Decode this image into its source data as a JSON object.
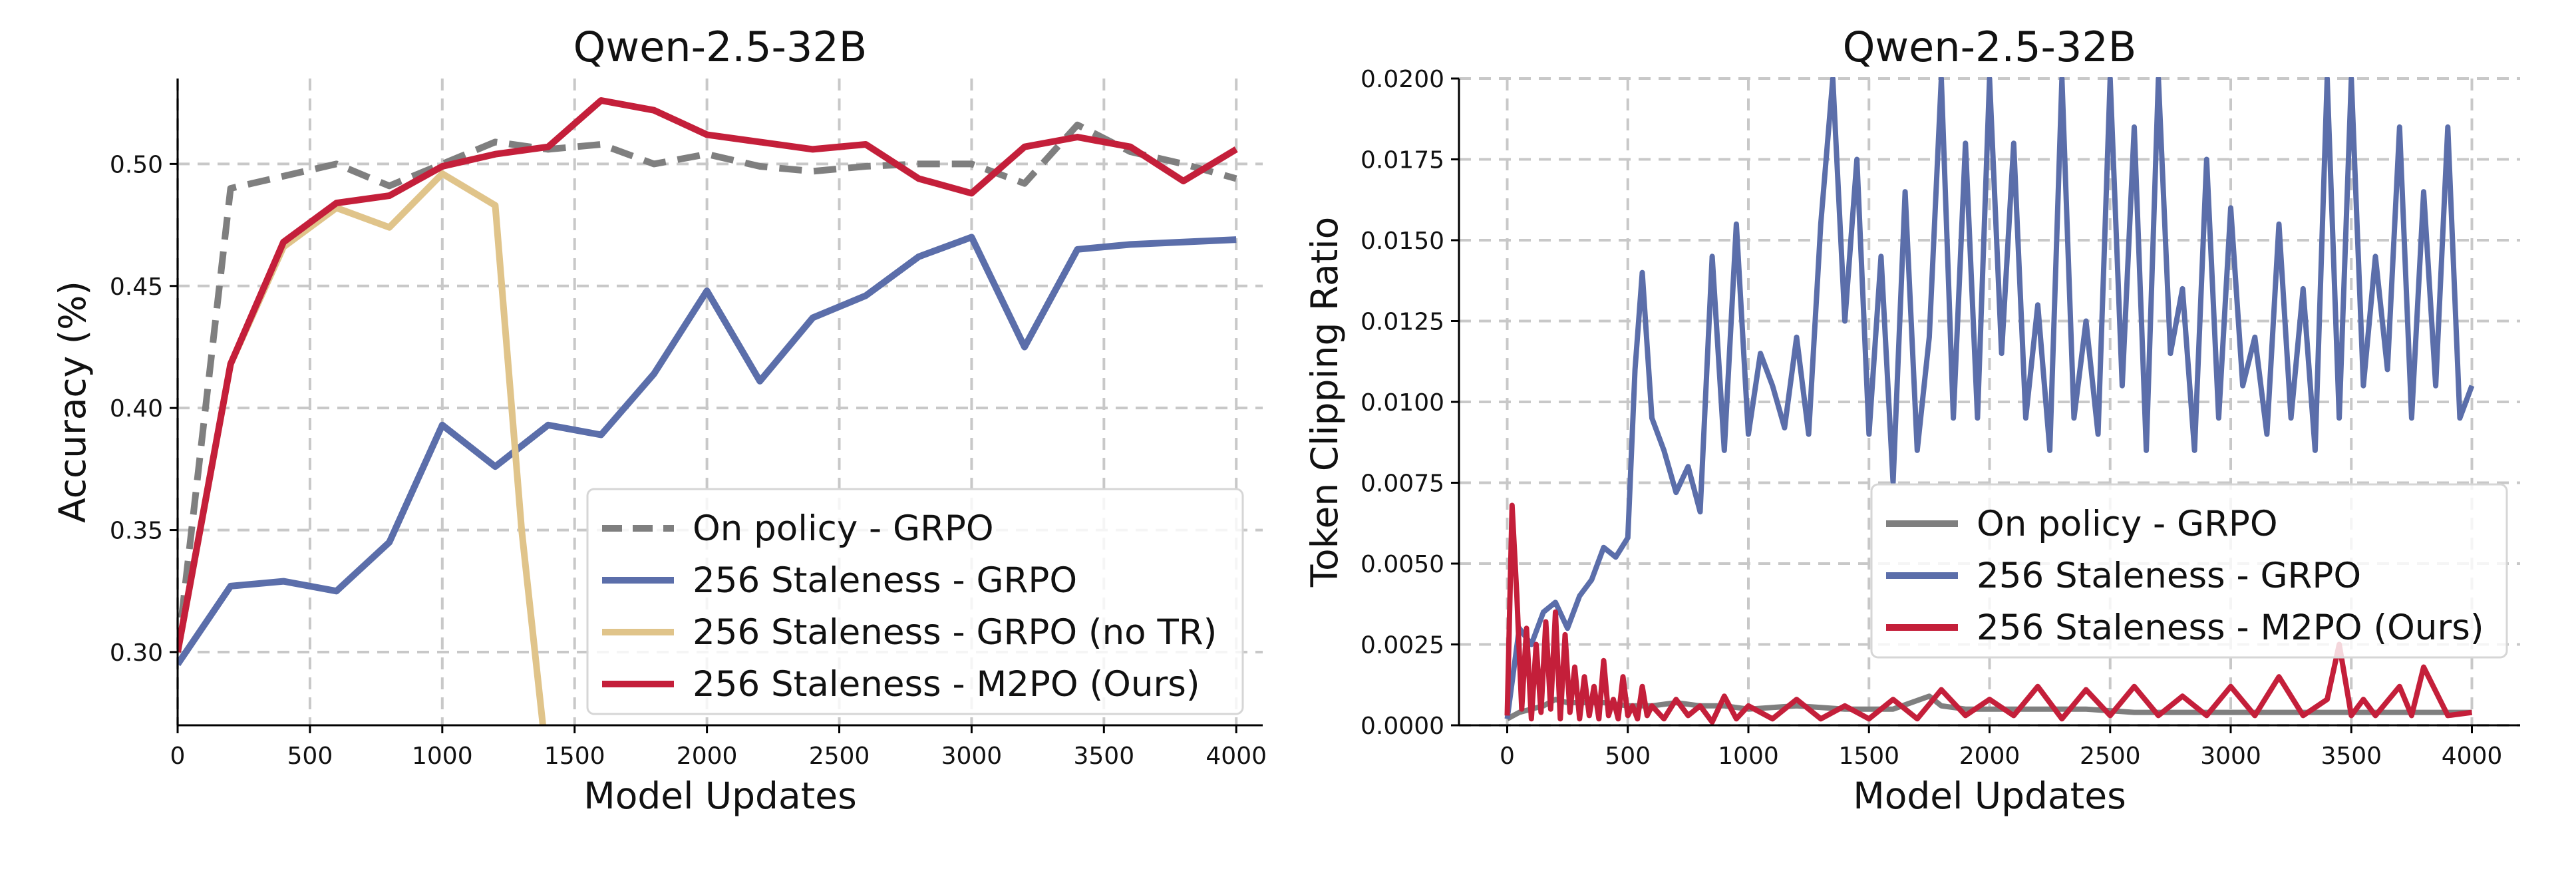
{
  "chart_data": [
    {
      "type": "line",
      "title": "Qwen-2.5-32B",
      "xlabel": "Model Updates",
      "ylabel": "Accuracy (%)",
      "xlim": [
        0,
        4100
      ],
      "ylim": [
        0.27,
        0.535
      ],
      "xticks": [
        0,
        500,
        1000,
        1500,
        2000,
        2500,
        3000,
        3500,
        4000
      ],
      "xtick_labels": [
        "0",
        "500",
        "1000",
        "1500",
        "2000",
        "2500",
        "3000",
        "3500",
        "4000"
      ],
      "yticks": [
        0.3,
        0.35,
        0.4,
        0.45,
        0.5
      ],
      "ytick_labels": [
        "0.30",
        "0.35",
        "0.40",
        "0.45",
        "0.50"
      ],
      "grid": true,
      "legend_position": "bottom-right",
      "series": [
        {
          "name": "On policy - GRPO",
          "color": "#7f7f7f",
          "dash": true,
          "x": [
            0,
            200,
            400,
            600,
            800,
            1000,
            1200,
            1400,
            1600,
            1800,
            2000,
            2200,
            2400,
            2600,
            2800,
            3000,
            3200,
            3400,
            3600,
            3800,
            4000
          ],
          "y": [
            0.3,
            0.49,
            0.495,
            0.5,
            0.491,
            0.5,
            0.509,
            0.506,
            0.508,
            0.5,
            0.504,
            0.499,
            0.497,
            0.499,
            0.5,
            0.5,
            0.492,
            0.516,
            0.505,
            0.5,
            0.494
          ]
        },
        {
          "name": "256 Staleness - GRPO",
          "color": "#5b6eaa",
          "dash": false,
          "x": [
            0,
            200,
            400,
            600,
            800,
            1000,
            1200,
            1400,
            1600,
            1800,
            2000,
            2200,
            2400,
            2600,
            2800,
            3000,
            3200,
            3400,
            3600,
            3800,
            4000
          ],
          "y": [
            0.295,
            0.327,
            0.329,
            0.325,
            0.345,
            0.393,
            0.376,
            0.393,
            0.389,
            0.414,
            0.448,
            0.411,
            0.437,
            0.446,
            0.462,
            0.47,
            0.425,
            0.465,
            0.467,
            0.468,
            0.469
          ]
        },
        {
          "name": "256 Staleness - GRPO (no TR)",
          "color": "#e0c48a",
          "dash": false,
          "x": [
            0,
            200,
            400,
            600,
            800,
            1000,
            1200,
            1300,
            1380
          ],
          "y": [
            0.3,
            0.418,
            0.466,
            0.482,
            0.474,
            0.496,
            0.483,
            0.35,
            0.27
          ]
        },
        {
          "name": "256 Staleness - M2PO (Ours)",
          "color": "#c41f3a",
          "dash": false,
          "x": [
            0,
            200,
            400,
            600,
            800,
            1000,
            1200,
            1400,
            1600,
            1800,
            2000,
            2200,
            2400,
            2600,
            2800,
            3000,
            3200,
            3400,
            3600,
            3800,
            4000
          ],
          "y": [
            0.3,
            0.418,
            0.468,
            0.484,
            0.487,
            0.499,
            0.504,
            0.507,
            0.526,
            0.522,
            0.512,
            0.509,
            0.506,
            0.508,
            0.494,
            0.488,
            0.507,
            0.511,
            0.507,
            0.493,
            0.506
          ]
        }
      ]
    },
    {
      "type": "line",
      "title": "Qwen-2.5-32B",
      "xlabel": "Model Updates",
      "ylabel": "Token Clipping Ratio",
      "xlim": [
        -200,
        4200
      ],
      "ylim": [
        0,
        0.02
      ],
      "xticks": [
        0,
        500,
        1000,
        1500,
        2000,
        2500,
        3000,
        3500,
        4000
      ],
      "xtick_labels": [
        "0",
        "500",
        "1000",
        "1500",
        "2000",
        "2500",
        "3000",
        "3500",
        "4000"
      ],
      "yticks": [
        0,
        0.0025,
        0.005,
        0.0075,
        0.01,
        0.0125,
        0.015,
        0.0175,
        0.02
      ],
      "ytick_labels": [
        "0.0000",
        "0.0025",
        "0.0050",
        "0.0075",
        "0.0100",
        "0.0125",
        "0.0150",
        "0.0175",
        "0.0200"
      ],
      "grid": true,
      "legend_position": "lower-right",
      "series": [
        {
          "name": "On policy - GRPO",
          "color": "#7f7f7f",
          "dash": false,
          "x": [
            0,
            50,
            100,
            150,
            200,
            250,
            300,
            400,
            500,
            600,
            700,
            800,
            900,
            1000,
            1200,
            1400,
            1600,
            1750,
            1800,
            1900,
            2000,
            2200,
            2400,
            2600,
            2800,
            3000,
            3200,
            3400,
            3600,
            3800,
            4000
          ],
          "y": [
            0.0002,
            0.0004,
            0.0005,
            0.0006,
            0.0008,
            0.0007,
            0.0007,
            0.0007,
            0.0006,
            0.0006,
            0.0007,
            0.0006,
            0.0006,
            0.0005,
            0.0006,
            0.0005,
            0.0005,
            0.0009,
            0.0006,
            0.0005,
            0.0005,
            0.0005,
            0.0005,
            0.0004,
            0.0004,
            0.0004,
            0.0004,
            0.0004,
            0.0004,
            0.0004,
            0.0004
          ]
        },
        {
          "name": "256 Staleness - GRPO",
          "color": "#5b6eaa",
          "dash": false,
          "x": [
            0,
            50,
            100,
            150,
            200,
            250,
            300,
            350,
            400,
            450,
            500,
            530,
            560,
            600,
            650,
            700,
            750,
            800,
            850,
            900,
            950,
            1000,
            1050,
            1100,
            1150,
            1200,
            1250,
            1300,
            1350,
            1400,
            1450,
            1500,
            1550,
            1600,
            1650,
            1700,
            1750,
            1800,
            1850,
            1900,
            1950,
            2000,
            2050,
            2100,
            2150,
            2200,
            2250,
            2300,
            2350,
            2400,
            2450,
            2500,
            2550,
            2600,
            2650,
            2700,
            2750,
            2800,
            2850,
            2900,
            2950,
            3000,
            3050,
            3100,
            3150,
            3200,
            3250,
            3300,
            3350,
            3400,
            3450,
            3500,
            3550,
            3600,
            3650,
            3700,
            3750,
            3800,
            3850,
            3900,
            3950,
            4000
          ],
          "y": [
            0.0002,
            0.003,
            0.0025,
            0.0035,
            0.0038,
            0.003,
            0.004,
            0.0045,
            0.0055,
            0.0052,
            0.0058,
            0.011,
            0.014,
            0.0095,
            0.0085,
            0.0072,
            0.008,
            0.0066,
            0.0145,
            0.0085,
            0.0155,
            0.009,
            0.0115,
            0.0105,
            0.0092,
            0.012,
            0.009,
            0.0155,
            0.02,
            0.0125,
            0.0175,
            0.009,
            0.0145,
            0.0075,
            0.0165,
            0.0085,
            0.012,
            0.02,
            0.0095,
            0.018,
            0.0095,
            0.02,
            0.0115,
            0.018,
            0.0095,
            0.013,
            0.0085,
            0.02,
            0.0095,
            0.0125,
            0.009,
            0.02,
            0.0105,
            0.0185,
            0.0085,
            0.02,
            0.0115,
            0.0135,
            0.0085,
            0.0175,
            0.0095,
            0.016,
            0.0105,
            0.012,
            0.009,
            0.0155,
            0.0095,
            0.0135,
            0.0085,
            0.02,
            0.0095,
            0.02,
            0.0105,
            0.0145,
            0.011,
            0.0185,
            0.0095,
            0.0165,
            0.0105,
            0.0185,
            0.0095,
            0.0105
          ]
        },
        {
          "name": "256 Staleness - M2PO (Ours)",
          "color": "#c41f3a",
          "dash": false,
          "x": [
            0,
            20,
            40,
            60,
            80,
            100,
            120,
            140,
            160,
            180,
            200,
            220,
            240,
            260,
            280,
            300,
            320,
            340,
            360,
            380,
            400,
            420,
            440,
            460,
            480,
            500,
            520,
            540,
            560,
            580,
            600,
            650,
            700,
            750,
            800,
            850,
            900,
            950,
            1000,
            1100,
            1200,
            1300,
            1400,
            1500,
            1600,
            1700,
            1800,
            1900,
            2000,
            2100,
            2200,
            2300,
            2400,
            2500,
            2600,
            2700,
            2800,
            2900,
            3000,
            3100,
            3200,
            3300,
            3400,
            3450,
            3500,
            3550,
            3600,
            3700,
            3750,
            3800,
            3900,
            4000
          ],
          "y": [
            0.0003,
            0.0068,
            0.004,
            0.0005,
            0.003,
            0.0002,
            0.0025,
            0.0004,
            0.0032,
            0.0005,
            0.0035,
            0.0002,
            0.0028,
            0.0004,
            0.0018,
            0.0002,
            0.0015,
            0.0003,
            0.0012,
            0.0002,
            0.002,
            0.0003,
            0.0008,
            0.0002,
            0.0015,
            0.0003,
            0.0006,
            0.0002,
            0.0012,
            0.0003,
            0.0006,
            0.0002,
            0.0008,
            0.0003,
            0.0006,
            0.0001,
            0.0009,
            0.0002,
            0.0006,
            0.0002,
            0.0008,
            0.0002,
            0.0006,
            0.0002,
            0.0008,
            0.0002,
            0.0011,
            0.0003,
            0.0008,
            0.0003,
            0.0012,
            0.0002,
            0.0011,
            0.0003,
            0.0012,
            0.0003,
            0.0009,
            0.0003,
            0.0012,
            0.0003,
            0.0015,
            0.0003,
            0.0008,
            0.0025,
            0.0003,
            0.0008,
            0.0003,
            0.0012,
            0.0003,
            0.0018,
            0.0003,
            0.0004
          ]
        }
      ]
    }
  ]
}
